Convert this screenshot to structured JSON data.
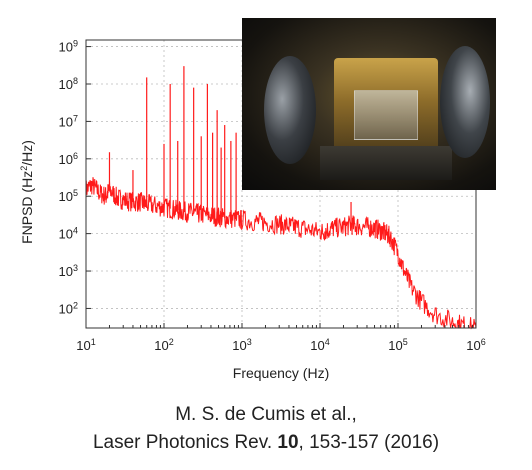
{
  "chart_data": {
    "type": "line",
    "title": "",
    "xlabel": "Frequency (Hz)",
    "ylabel_base": "FNPSD (Hz",
    "ylabel_sup": "2",
    "ylabel_tail": "/Hz)",
    "xscale": "log",
    "yscale": "log",
    "xlim": [
      10,
      1000000
    ],
    "ylim": [
      30,
      1500000000
    ],
    "grid": true,
    "x_ticks": [
      {
        "base": "10",
        "exp": "1",
        "value": 10
      },
      {
        "base": "10",
        "exp": "2",
        "value": 100
      },
      {
        "base": "10",
        "exp": "3",
        "value": 1000
      },
      {
        "base": "10",
        "exp": "4",
        "value": 10000
      },
      {
        "base": "10",
        "exp": "5",
        "value": 100000
      },
      {
        "base": "10",
        "exp": "6",
        "value": 1000000
      }
    ],
    "y_ticks": [
      {
        "base": "10",
        "exp": "2",
        "value": 100
      },
      {
        "base": "10",
        "exp": "3",
        "value": 1000
      },
      {
        "base": "10",
        "exp": "4",
        "value": 10000
      },
      {
        "base": "10",
        "exp": "5",
        "value": 100000
      },
      {
        "base": "10",
        "exp": "6",
        "value": 1000000
      },
      {
        "base": "10",
        "exp": "7",
        "value": 10000000
      },
      {
        "base": "10",
        "exp": "8",
        "value": 100000000
      },
      {
        "base": "10",
        "exp": "9",
        "value": 1000000000
      }
    ],
    "series": [
      {
        "color": "#ff1a1a",
        "x": [
          10,
          12,
          15,
          18,
          20,
          25,
          30,
          40,
          50,
          60,
          80,
          100,
          130,
          160,
          200,
          250,
          300,
          400,
          500,
          600,
          800,
          1000,
          1500,
          2000,
          3000,
          4000,
          5000,
          7000,
          10000,
          12000,
          15000,
          20000,
          25000,
          30000,
          40000,
          50000,
          60000,
          70000,
          80000,
          100000,
          120000,
          150000,
          200000,
          300000,
          500000,
          700000,
          1000000
        ],
        "y": [
          150000,
          200000,
          120000,
          100000,
          150000,
          90000,
          80000,
          70000,
          70000,
          60000,
          55000,
          50000,
          45000,
          40000,
          38000,
          35000,
          33000,
          30000,
          28000,
          26000,
          25000,
          23000,
          21000,
          20000,
          18000,
          16000,
          15000,
          13000,
          11000,
          12000,
          14000,
          15000,
          17000,
          16000,
          15000,
          14000,
          12000,
          10000,
          8000,
          3000,
          1000,
          350,
          150,
          70,
          45,
          35,
          30
        ]
      }
    ],
    "peaks": [
      {
        "x": 20,
        "y": 1500000
      },
      {
        "x": 40,
        "y": 500000
      },
      {
        "x": 60,
        "y": 150000000
      },
      {
        "x": 100,
        "y": 2500000
      },
      {
        "x": 120,
        "y": 100000000
      },
      {
        "x": 150,
        "y": 3000000
      },
      {
        "x": 180,
        "y": 300000000
      },
      {
        "x": 240,
        "y": 80000000
      },
      {
        "x": 300,
        "y": 4000000
      },
      {
        "x": 360,
        "y": 100000000
      },
      {
        "x": 420,
        "y": 5000000
      },
      {
        "x": 480,
        "y": 20000000
      },
      {
        "x": 540,
        "y": 2000000
      },
      {
        "x": 600,
        "y": 8000000
      },
      {
        "x": 720,
        "y": 3000000
      },
      {
        "x": 840,
        "y": 5000000
      },
      {
        "x": 25000,
        "y": 70000
      }
    ]
  },
  "citation": {
    "authors": "M. S. de Cumis et al.,",
    "journal": "Laser Photonics Rev. ",
    "volume": "10",
    "pages": ", 153-157 (2016)"
  }
}
